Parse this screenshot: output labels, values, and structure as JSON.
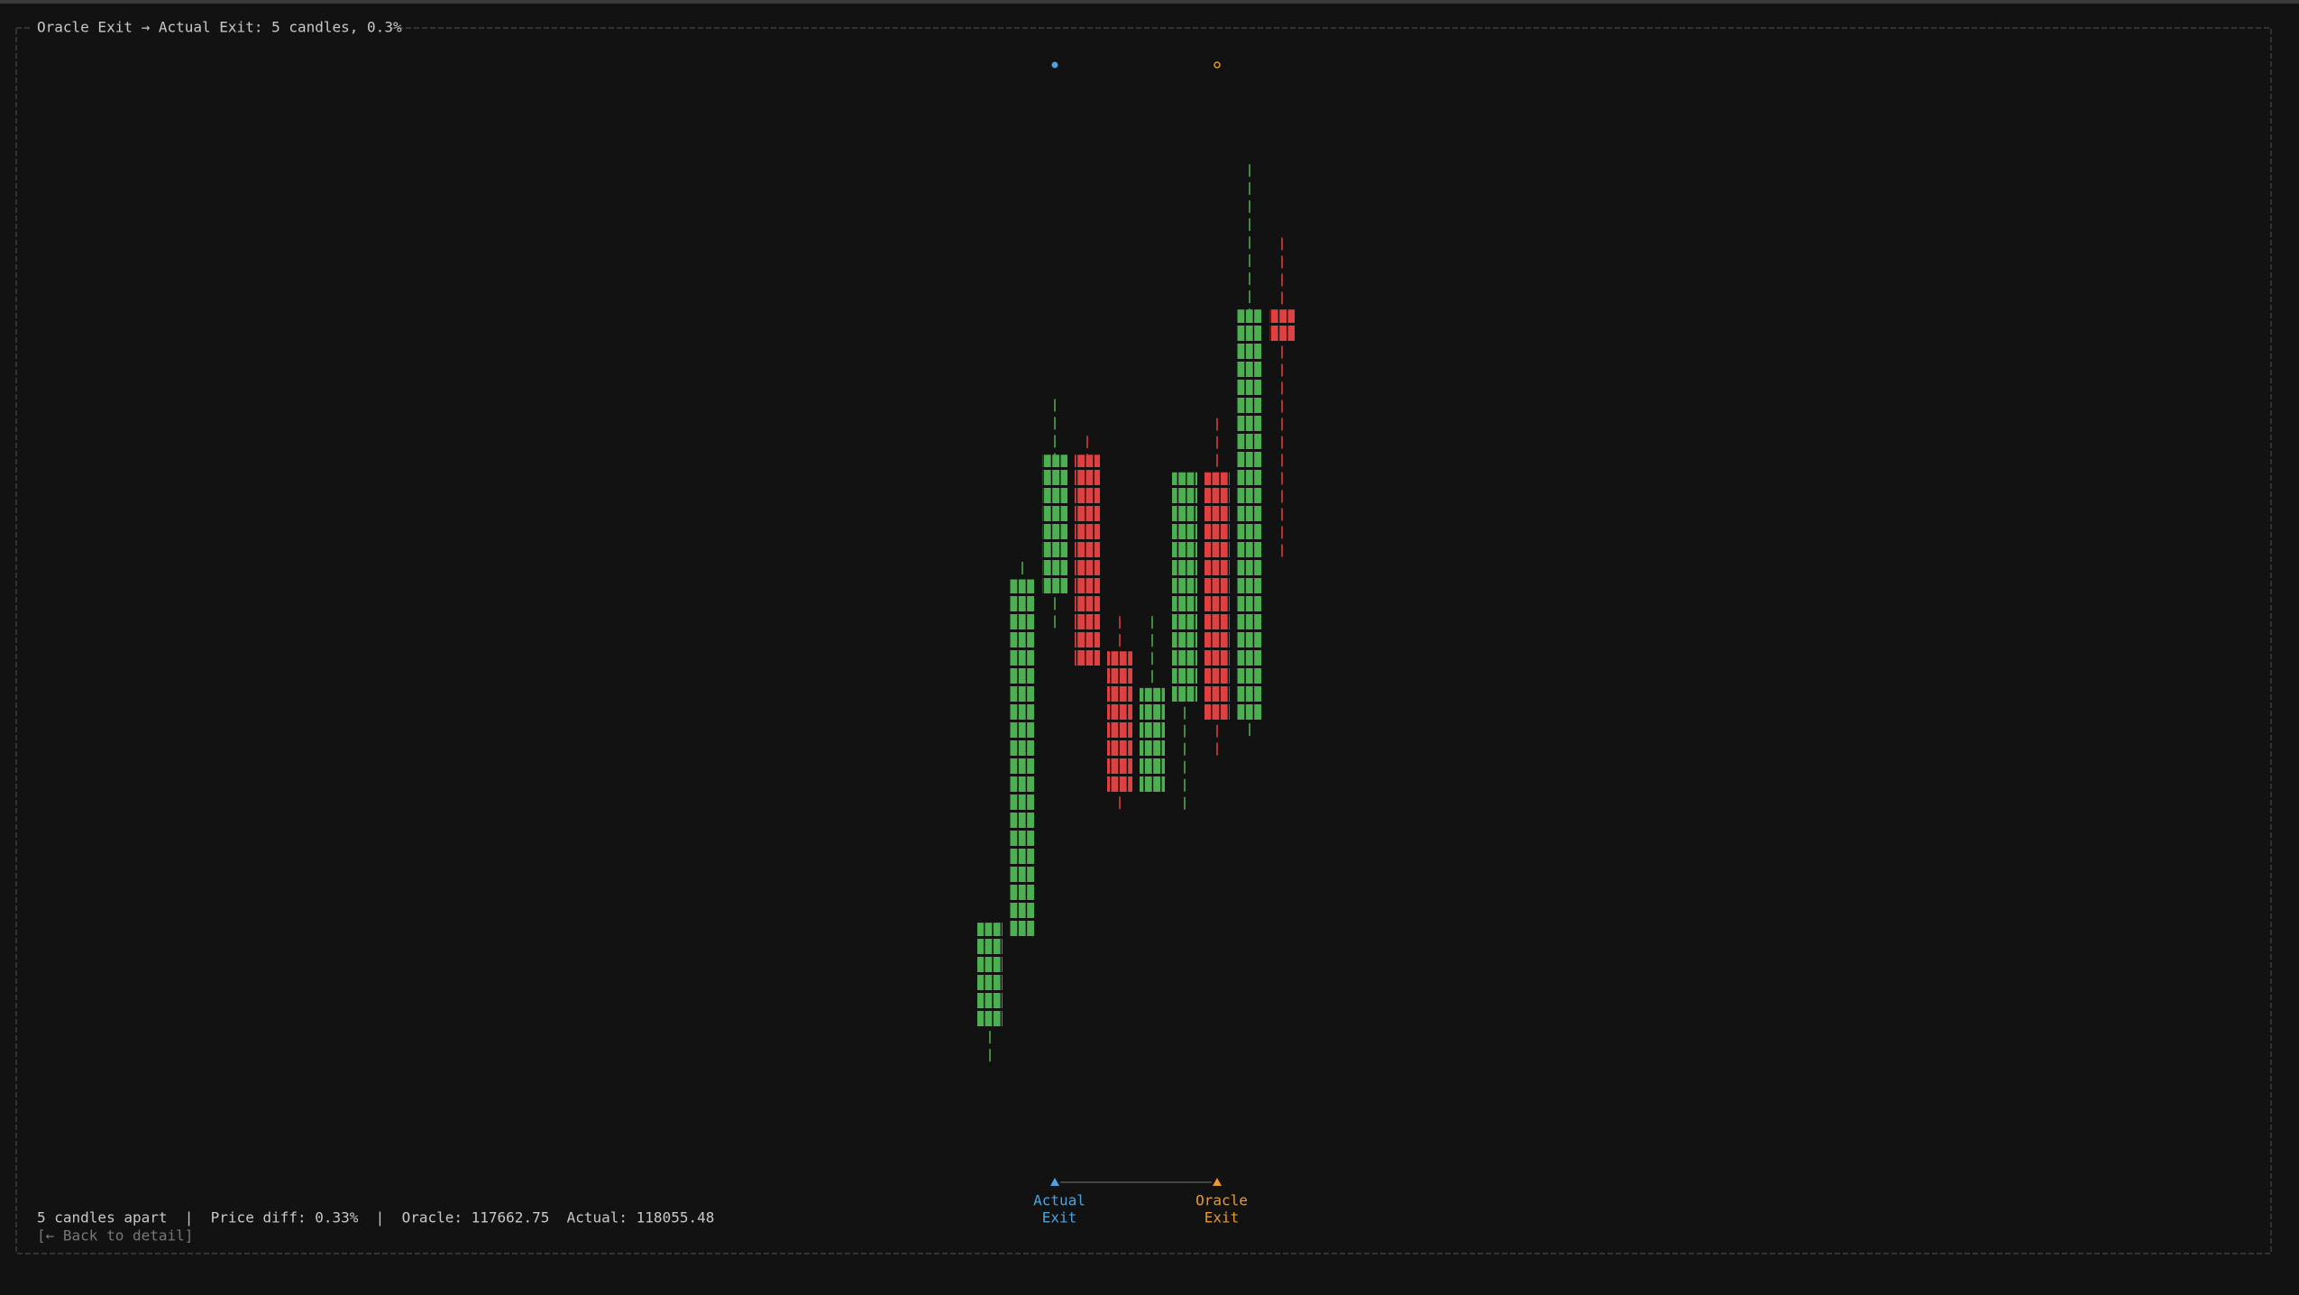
{
  "chart_data": {
    "type": "candlestick",
    "title": "Oracle Exit → Actual Exit: 5 candles, 0.3%",
    "candles": [
      {
        "open": 117211.7,
        "high": 117367.1,
        "low": 117157.8,
        "close": 117367.1
      },
      {
        "open": 117343.4,
        "high": 117898.0,
        "low": 117343.4,
        "close": 117872.1
      },
      {
        "open": 117848.3,
        "high": 118137.5,
        "low": 117796.5,
        "close": 118055.48
      },
      {
        "open": 118055.48,
        "high": 118083.5,
        "low": 117742.6,
        "close": 117742.6
      },
      {
        "open": 117766.3,
        "high": 117818.1,
        "low": 117531.1,
        "close": 117557.0
      },
      {
        "open": 117557.0,
        "high": 117818.1,
        "low": 117557.0,
        "close": 117712.4
      },
      {
        "open": 117688.6,
        "high": 118029.6,
        "low": 117531.1,
        "close": 118029.6
      },
      {
        "open": 118029.6,
        "high": 118109.4,
        "low": 117611.0,
        "close": 117662.75
      },
      {
        "open": 117662.75,
        "high": 118482.8,
        "low": 117636.8,
        "close": 118269.1
      },
      {
        "open": 118269.1,
        "high": 118374.9,
        "low": 117902.3,
        "close": 118219.5
      }
    ],
    "up_color": "#4caf50",
    "down_color": "#e04040",
    "ylim": [
      117019.7,
      118638.2
    ],
    "markers": [
      {
        "label_lines": [
          "Actual",
          "Exit"
        ],
        "index": 2,
        "color": "#4aa3e0"
      },
      {
        "label_lines": [
          "Oracle",
          "Exit"
        ],
        "index": 7,
        "color": "#e89a2a"
      }
    ]
  },
  "footer": {
    "summary": "5 candles apart  |  Price diff: 0.33%  |  Oracle: 117662.75  Actual: 118055.48",
    "back": "[← Back to detail]"
  }
}
